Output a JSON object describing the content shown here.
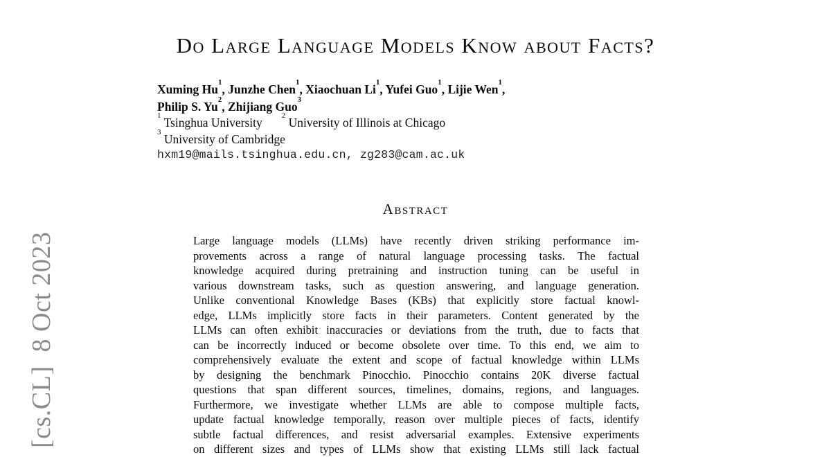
{
  "watermark": {
    "text": "[cs.CL]  8 Oct 2023",
    "color": "#8b8b8b"
  },
  "title": "Do Large Language Models Know about Facts?",
  "authors": {
    "line1": [
      {
        "name": "Xuming Hu",
        "sup": "1",
        "after": ", "
      },
      {
        "name": "Junzhe Chen",
        "sup": "1",
        "after": ", "
      },
      {
        "name": "Xiaochuan Li",
        "sup": "1",
        "after": ", "
      },
      {
        "name": "Yufei Guo",
        "sup": "1",
        "after": ", "
      },
      {
        "name": "Lijie Wen",
        "sup": "1",
        "after": ","
      }
    ],
    "line2": [
      {
        "name": "Philip S. Yu",
        "sup": "2",
        "after": ", "
      },
      {
        "name": "Zhijiang Guo",
        "sup": "3",
        "after": ""
      }
    ]
  },
  "affiliations": [
    {
      "sup": "1",
      "name": "Tsinghua University"
    },
    {
      "sup": "2",
      "name": "University of Illinois at Chicago"
    },
    {
      "sup": "3",
      "name": "University of Cambridge"
    }
  ],
  "email": "hxm19@mails.tsinghua.edu.cn, zg283@cam.ac.uk",
  "abstract": {
    "heading": "Abstract",
    "lines": [
      "Large language models (LLMs) have recently driven striking performance im-",
      "provements across a range of natural language processing tasks. The factual",
      "knowledge acquired during pretraining and instruction tuning can be useful in",
      "various downstream tasks, such as question answering, and language generation.",
      "Unlike conventional Knowledge Bases (KBs) that explicitly store factual knowl-",
      "edge, LLMs implicitly store facts in their parameters. Content generated by the",
      "LLMs can often exhibit inaccuracies or deviations from the truth, due to facts that",
      "can be incorrectly induced or become obsolete over time. To this end, we aim to",
      "comprehensively evaluate the extent and scope of factual knowledge within LLMs",
      "by designing the benchmark Pinocchio. Pinocchio contains 20K diverse factual",
      "questions that span different sources, timelines, domains, regions, and languages.",
      "Furthermore, we investigate whether LLMs are able to compose multiple facts,",
      "update factual knowledge temporally, reason over multiple pieces of facts, identify",
      "subtle factual differences, and resist adversarial examples. Extensive experiments",
      "on different sizes and types of LLMs show that existing LLMs still lack factual"
    ]
  },
  "colors": {
    "text": "#0b0b0b",
    "background": "#ffffff"
  }
}
